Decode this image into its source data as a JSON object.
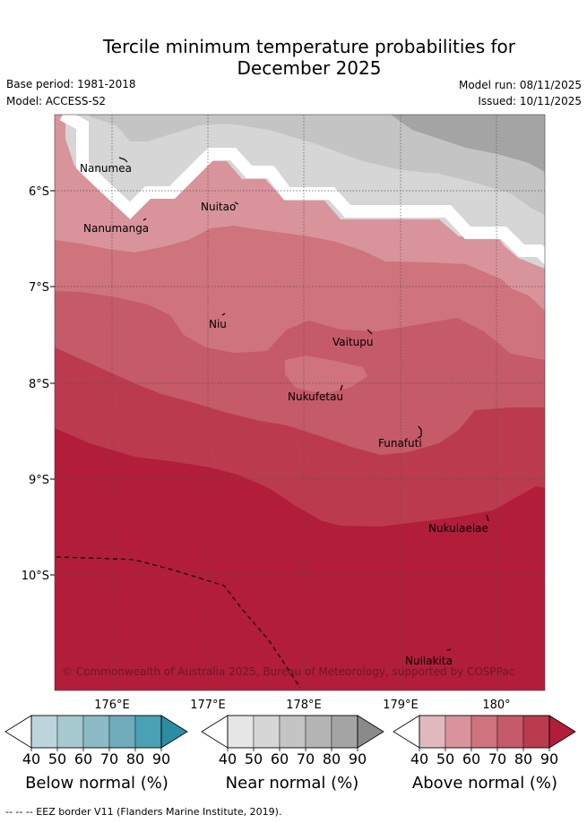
{
  "title": {
    "line1": "Tercile minimum temperature probabilities for",
    "line2": "December 2025"
  },
  "meta": {
    "base_period": "Base period: 1981-2018",
    "model": "Model: ACCESS-S2",
    "model_run": "Model run: 08/11/2025",
    "issued": "Issued: 10/11/2025"
  },
  "axes": {
    "x_ticks": [
      "176°E",
      "177°E",
      "178°E",
      "179°E",
      "180°"
    ],
    "y_ticks": [
      "6°S",
      "7°S",
      "8°S",
      "9°S",
      "10°S"
    ]
  },
  "places": [
    {
      "name": "Nanumea"
    },
    {
      "name": "Nuitao"
    },
    {
      "name": "Nanumanga"
    },
    {
      "name": "Niu"
    },
    {
      "name": "Vaitupu"
    },
    {
      "name": "Nukufetau"
    },
    {
      "name": "Funafuti"
    },
    {
      "name": "Nukulaelae"
    },
    {
      "name": "Nuilakita"
    }
  ],
  "copyright": "© Commonwealth of Australia 2025, Bureau of Meteorology, supported by COSPPac",
  "colorbars": {
    "ticks": [
      "40",
      "50",
      "60",
      "70",
      "80",
      "90"
    ],
    "below": {
      "label": "Below normal (%)",
      "colors": [
        "#ffffff",
        "#bcd5dc",
        "#a6c8cf",
        "#8cbac6",
        "#6eacbc",
        "#4aa1b3",
        "#2c8ca1"
      ]
    },
    "near": {
      "label": "Near normal (%)",
      "colors": [
        "#ffffff",
        "#e6e6e6",
        "#d6d6d6",
        "#c4c4c4",
        "#b4b4b4",
        "#a4a4a4",
        "#8a8a8a"
      ]
    },
    "above": {
      "label": "Above normal (%)",
      "colors": [
        "#ffffff",
        "#e2b8bf",
        "#d9939b",
        "#cf737d",
        "#c55a68",
        "#bb3a4e",
        "#b21d3a"
      ]
    }
  },
  "footer": "--  --  -- EEZ border V11 (Flanders Marine Institute, 2019)."
}
